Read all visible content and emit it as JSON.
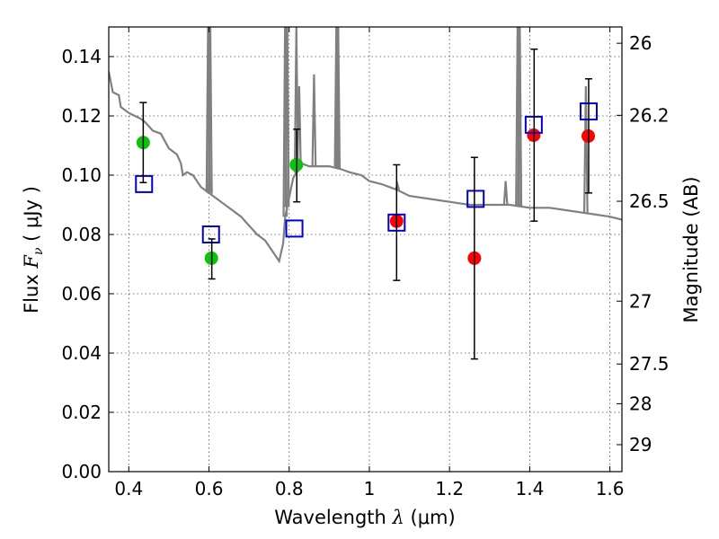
{
  "chart_data": {
    "type": "scatter",
    "title": "",
    "xlabel": {
      "prefix": "Wavelength ",
      "symbol": "λ",
      "unit": " (μm)"
    },
    "ylabel": {
      "prefix": "Flux ",
      "symbol": "F",
      "subscript": "ν",
      "unit": " ( μJy )"
    },
    "y2label": "Magnitude (AB)",
    "xlim": [
      0.35,
      1.63
    ],
    "ylim": [
      0.0,
      0.15
    ],
    "xticks": [
      0.4,
      0.6,
      0.8,
      1.0,
      1.2,
      1.4,
      1.6
    ],
    "xtick_labels": [
      "0.4",
      "0.6",
      "0.8",
      "1",
      "1.2",
      "1.4",
      "1.6"
    ],
    "yticks": [
      0.0,
      0.02,
      0.04,
      0.06,
      0.08,
      0.1,
      0.12,
      0.14
    ],
    "ytick_labels": [
      "0.00",
      "0.02",
      "0.04",
      "0.06",
      "0.08",
      "0.10",
      "0.12",
      "0.14"
    ],
    "right_ticks": [
      {
        "label": "26",
        "flux": 0.1445
      },
      {
        "label": "26.2",
        "flux": 0.1202
      },
      {
        "label": "26.5",
        "flux": 0.0912
      },
      {
        "label": "27",
        "flux": 0.0575
      },
      {
        "label": "27.5",
        "flux": 0.0363
      },
      {
        "label": "28",
        "flux": 0.0229
      },
      {
        "label": "29",
        "flux": 0.0091
      }
    ],
    "grid": true,
    "series": [
      {
        "kind": "line",
        "color": "#808080",
        "x": [
          0.35,
          0.36,
          0.375,
          0.38,
          0.39,
          0.4,
          0.415,
          0.43,
          0.44,
          0.46,
          0.48,
          0.5,
          0.52,
          0.53,
          0.535,
          0.545,
          0.56,
          0.58,
          0.59,
          0.6,
          0.62,
          0.65,
          0.68,
          0.7,
          0.72,
          0.74,
          0.76,
          0.775,
          0.785,
          0.79,
          0.81,
          0.83,
          0.85,
          0.88,
          0.9,
          0.93,
          0.95,
          0.98,
          1.0,
          1.03,
          1.05,
          1.07,
          1.1,
          1.15,
          1.2,
          1.25,
          1.3,
          1.35,
          1.4,
          1.45,
          1.5,
          1.55,
          1.6,
          1.63
        ],
        "y": [
          0.135,
          0.128,
          0.127,
          0.123,
          0.122,
          0.121,
          0.12,
          0.119,
          0.118,
          0.115,
          0.114,
          0.109,
          0.107,
          0.104,
          0.1,
          0.101,
          0.1,
          0.096,
          0.095,
          0.094,
          0.092,
          0.089,
          0.086,
          0.083,
          0.08,
          0.078,
          0.074,
          0.071,
          0.077,
          0.086,
          0.099,
          0.104,
          0.103,
          0.103,
          0.103,
          0.102,
          0.101,
          0.1,
          0.098,
          0.097,
          0.096,
          0.095,
          0.093,
          0.092,
          0.091,
          0.09,
          0.09,
          0.09,
          0.089,
          0.089,
          0.088,
          0.087,
          0.086,
          0.085
        ],
        "spikes": [
          {
            "x": 0.598,
            "top": 0.155
          },
          {
            "x": 0.603,
            "top": 0.155
          },
          {
            "x": 0.79,
            "top": 0.155
          },
          {
            "x": 0.795,
            "top": 0.155
          },
          {
            "x": 0.818,
            "top": 0.15
          },
          {
            "x": 0.825,
            "top": 0.13
          },
          {
            "x": 0.862,
            "top": 0.134
          },
          {
            "x": 0.918,
            "top": 0.155
          },
          {
            "x": 0.922,
            "top": 0.155
          },
          {
            "x": 1.07,
            "top": 0.097
          },
          {
            "x": 1.34,
            "top": 0.098
          },
          {
            "x": 1.37,
            "top": 0.155
          },
          {
            "x": 1.375,
            "top": 0.155
          },
          {
            "x": 1.54,
            "top": 0.13
          }
        ]
      },
      {
        "kind": "points",
        "marker": "circle",
        "color": "#0fc20f",
        "x": [
          0.436,
          0.606,
          0.818
        ],
        "y": [
          0.111,
          0.072,
          0.1035
        ]
      },
      {
        "kind": "points",
        "marker": "circle",
        "color": "#ff0000",
        "x": [
          1.068,
          1.262,
          1.41,
          1.546
        ],
        "y": [
          0.0845,
          0.072,
          0.1135,
          0.1132
        ]
      },
      {
        "kind": "points",
        "marker": "open-square",
        "color": "#0000d0",
        "x": [
          0.438,
          0.605,
          0.813,
          1.068,
          1.265,
          1.41,
          1.547
        ],
        "y": [
          0.097,
          0.08,
          0.082,
          0.084,
          0.092,
          0.117,
          0.1215
        ]
      },
      {
        "kind": "errorbars",
        "color": "#000000",
        "x": [
          0.436,
          0.607,
          0.819,
          1.068,
          1.262,
          1.411,
          1.547
        ],
        "low": [
          0.0975,
          0.065,
          0.091,
          0.0645,
          0.038,
          0.0845,
          0.094
        ],
        "high": [
          0.1245,
          0.0785,
          0.1155,
          0.1035,
          0.106,
          0.1425,
          0.1325
        ]
      }
    ]
  }
}
